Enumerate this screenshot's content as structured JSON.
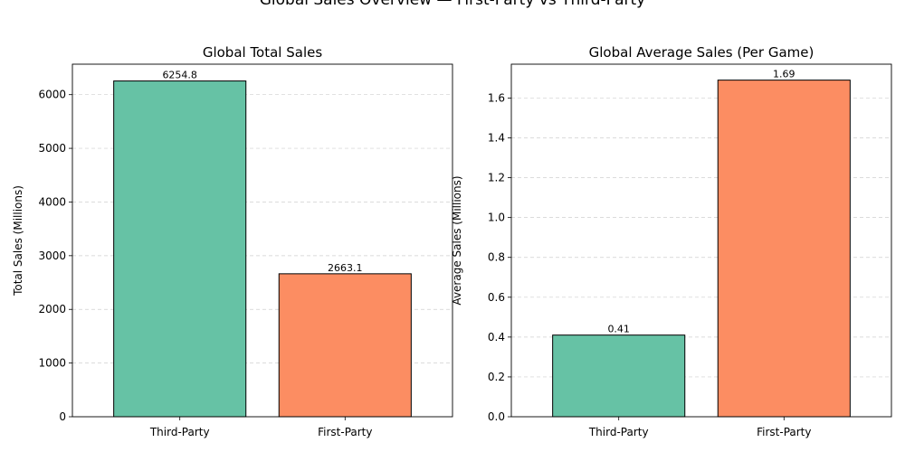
{
  "figure": {
    "title": "Global Sales Overview — First-Party vs Third-Party"
  },
  "chart_data": [
    {
      "type": "bar",
      "title": "Global Total Sales",
      "xlabel": "",
      "ylabel": "Total Sales (Millions)",
      "categories": [
        "Third-Party",
        "First-Party"
      ],
      "values": [
        6254.8,
        2663.1
      ],
      "value_labels": [
        "6254.8",
        "2663.1"
      ],
      "colors": [
        "#66c2a5",
        "#fc8d62"
      ],
      "ylim": [
        0,
        6567.5
      ],
      "yticks": [
        0,
        1000,
        2000,
        3000,
        4000,
        5000,
        6000
      ],
      "ytick_labels": [
        "0",
        "1000",
        "2000",
        "3000",
        "4000",
        "5000",
        "6000"
      ],
      "grid": "y-dashed",
      "legend": "none"
    },
    {
      "type": "bar",
      "title": "Global Average Sales (Per Game)",
      "xlabel": "",
      "ylabel": "Average Sales (Millions)",
      "categories": [
        "Third-Party",
        "First-Party"
      ],
      "values": [
        0.41,
        1.69
      ],
      "value_labels": [
        "0.41",
        "1.69"
      ],
      "colors": [
        "#66c2a5",
        "#fc8d62"
      ],
      "ylim": [
        0,
        1.77
      ],
      "yticks": [
        0,
        0.2,
        0.4,
        0.6,
        0.8,
        1.0,
        1.2,
        1.4,
        1.6
      ],
      "ytick_labels": [
        "0.0",
        "0.2",
        "0.4",
        "0.6",
        "0.8",
        "1.0",
        "1.2",
        "1.4",
        "1.6"
      ],
      "grid": "y-dashed",
      "legend": "none"
    }
  ]
}
